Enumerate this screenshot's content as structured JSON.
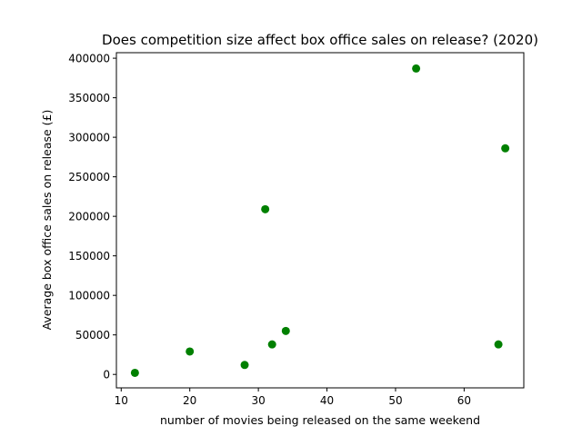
{
  "chart_data": {
    "type": "scatter",
    "title": "Does competition size affect box office sales on release? (2020)",
    "xlabel": "number of movies being released on the same weekend",
    "ylabel": "Average box office sales on release (£)",
    "xlim": [
      9.3,
      68.7
    ],
    "ylim": [
      -17000,
      407000
    ],
    "x_ticks": [
      10,
      20,
      30,
      40,
      50,
      60
    ],
    "y_ticks": [
      0,
      50000,
      100000,
      150000,
      200000,
      250000,
      300000,
      350000,
      400000
    ],
    "grid": false,
    "marker_color": "#008000",
    "points": [
      {
        "x": 12,
        "y": 2000
      },
      {
        "x": 20,
        "y": 29000
      },
      {
        "x": 28,
        "y": 12000
      },
      {
        "x": 31,
        "y": 209000
      },
      {
        "x": 32,
        "y": 38000
      },
      {
        "x": 34,
        "y": 55000
      },
      {
        "x": 53,
        "y": 387000
      },
      {
        "x": 65,
        "y": 38000
      },
      {
        "x": 66,
        "y": 286000
      }
    ]
  }
}
